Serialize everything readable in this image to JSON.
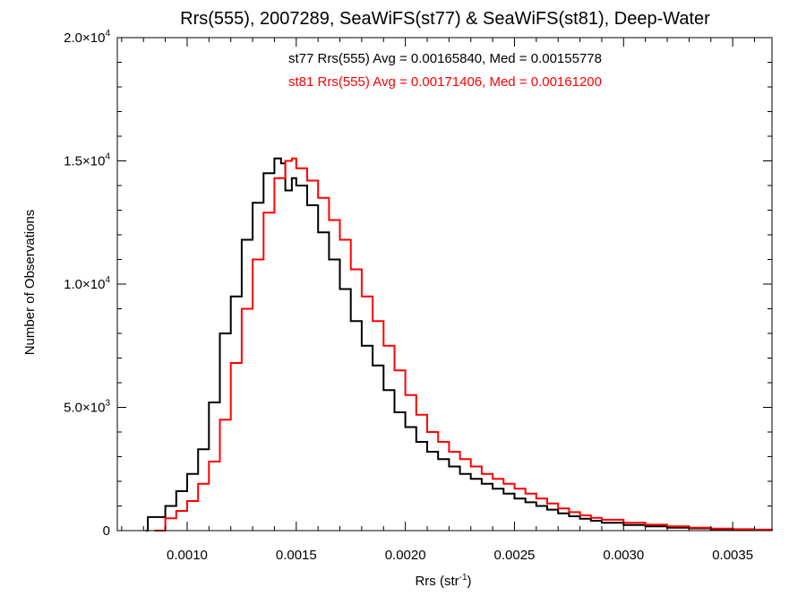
{
  "chart_data": {
    "type": "line",
    "title": "Rrs(555), 2007289, SeaWiFS(st77) & SeaWiFS(st81), Deep-Water",
    "xlabel_main": "Rrs (str",
    "xlabel_sup": "-1",
    "xlabel_end": ")",
    "ylabel": "Number of Observations",
    "xlim": [
      0.00068,
      0.00368
    ],
    "ylim": [
      0,
      20000
    ],
    "x_ticks": [
      {
        "value": 0.001,
        "label": "0.0010"
      },
      {
        "value": 0.0015,
        "label": "0.0015"
      },
      {
        "value": 0.002,
        "label": "0.0020"
      },
      {
        "value": 0.0025,
        "label": "0.0025"
      },
      {
        "value": 0.003,
        "label": "0.0030"
      },
      {
        "value": 0.0035,
        "label": "0.0035"
      }
    ],
    "y_ticks": [
      {
        "value": 0,
        "mant": "0",
        "exp": ""
      },
      {
        "value": 5000,
        "mant": "5.0×10",
        "exp": "3"
      },
      {
        "value": 10000,
        "mant": "1.0×10",
        "exp": "4"
      },
      {
        "value": 15000,
        "mant": "1.5×10",
        "exp": "4"
      },
      {
        "value": 20000,
        "mant": "2.0×10",
        "exp": "4"
      }
    ],
    "annotations": [
      {
        "text": "st77 Rrs(555) Avg = 0.00165840, Med = 0.00155778",
        "color": "#000000"
      },
      {
        "text": "st81 Rrs(555) Avg = 0.00171406, Med = 0.00161200",
        "color": "#ff0000"
      }
    ],
    "series": [
      {
        "name": "st77",
        "color": "#000000",
        "points": [
          [
            0.00081,
            0
          ],
          [
            0.00082,
            550
          ],
          [
            0.0009,
            1000
          ],
          [
            0.00095,
            1600
          ],
          [
            0.001,
            2300
          ],
          [
            0.00105,
            3300
          ],
          [
            0.0011,
            5200
          ],
          [
            0.00115,
            8000
          ],
          [
            0.0012,
            9500
          ],
          [
            0.00125,
            11800
          ],
          [
            0.0013,
            13300
          ],
          [
            0.00135,
            14500
          ],
          [
            0.0014,
            15100
          ],
          [
            0.00143,
            14900
          ],
          [
            0.00145,
            13800
          ],
          [
            0.00148,
            14300
          ],
          [
            0.0015,
            14000
          ],
          [
            0.00155,
            13200
          ],
          [
            0.0016,
            12100
          ],
          [
            0.00165,
            11000
          ],
          [
            0.0017,
            9800
          ],
          [
            0.00175,
            8500
          ],
          [
            0.0018,
            7500
          ],
          [
            0.00185,
            6700
          ],
          [
            0.0019,
            5700
          ],
          [
            0.00195,
            4800
          ],
          [
            0.002,
            4200
          ],
          [
            0.00205,
            3600
          ],
          [
            0.0021,
            3200
          ],
          [
            0.00215,
            2900
          ],
          [
            0.0022,
            2600
          ],
          [
            0.00225,
            2300
          ],
          [
            0.0023,
            2100
          ],
          [
            0.00235,
            1900
          ],
          [
            0.0024,
            1700
          ],
          [
            0.00245,
            1500
          ],
          [
            0.0025,
            1300
          ],
          [
            0.00255,
            1150
          ],
          [
            0.0026,
            1000
          ],
          [
            0.00265,
            850
          ],
          [
            0.0027,
            700
          ],
          [
            0.00275,
            580
          ],
          [
            0.0028,
            480
          ],
          [
            0.00285,
            400
          ],
          [
            0.0029,
            320
          ],
          [
            0.003,
            230
          ],
          [
            0.0031,
            170
          ],
          [
            0.0032,
            120
          ],
          [
            0.0033,
            90
          ],
          [
            0.0034,
            60
          ],
          [
            0.0035,
            40
          ],
          [
            0.0036,
            25
          ],
          [
            0.00368,
            15
          ]
        ]
      },
      {
        "name": "st81",
        "color": "#ff0000",
        "points": [
          [
            0.00085,
            0
          ],
          [
            0.0009,
            500
          ],
          [
            0.00095,
            800
          ],
          [
            0.001,
            1200
          ],
          [
            0.00105,
            1900
          ],
          [
            0.0011,
            2800
          ],
          [
            0.00115,
            4500
          ],
          [
            0.0012,
            6800
          ],
          [
            0.00125,
            9000
          ],
          [
            0.0013,
            11000
          ],
          [
            0.00135,
            12900
          ],
          [
            0.0014,
            14300
          ],
          [
            0.00145,
            15000
          ],
          [
            0.00148,
            15100
          ],
          [
            0.0015,
            14700
          ],
          [
            0.00155,
            14200
          ],
          [
            0.0016,
            13500
          ],
          [
            0.00165,
            12600
          ],
          [
            0.0017,
            11800
          ],
          [
            0.00175,
            10600
          ],
          [
            0.0018,
            9500
          ],
          [
            0.00185,
            8500
          ],
          [
            0.0019,
            7500
          ],
          [
            0.00195,
            6500
          ],
          [
            0.002,
            5500
          ],
          [
            0.00205,
            4700
          ],
          [
            0.0021,
            4000
          ],
          [
            0.00215,
            3600
          ],
          [
            0.0022,
            3200
          ],
          [
            0.00225,
            2900
          ],
          [
            0.0023,
            2600
          ],
          [
            0.00235,
            2300
          ],
          [
            0.0024,
            2100
          ],
          [
            0.00245,
            1900
          ],
          [
            0.0025,
            1700
          ],
          [
            0.00255,
            1500
          ],
          [
            0.0026,
            1300
          ],
          [
            0.00265,
            1100
          ],
          [
            0.0027,
            900
          ],
          [
            0.00275,
            750
          ],
          [
            0.0028,
            620
          ],
          [
            0.00285,
            520
          ],
          [
            0.0029,
            440
          ],
          [
            0.003,
            320
          ],
          [
            0.0031,
            240
          ],
          [
            0.0032,
            170
          ],
          [
            0.0033,
            120
          ],
          [
            0.0034,
            85
          ],
          [
            0.0035,
            60
          ],
          [
            0.0036,
            40
          ],
          [
            0.00368,
            25
          ]
        ]
      }
    ]
  }
}
